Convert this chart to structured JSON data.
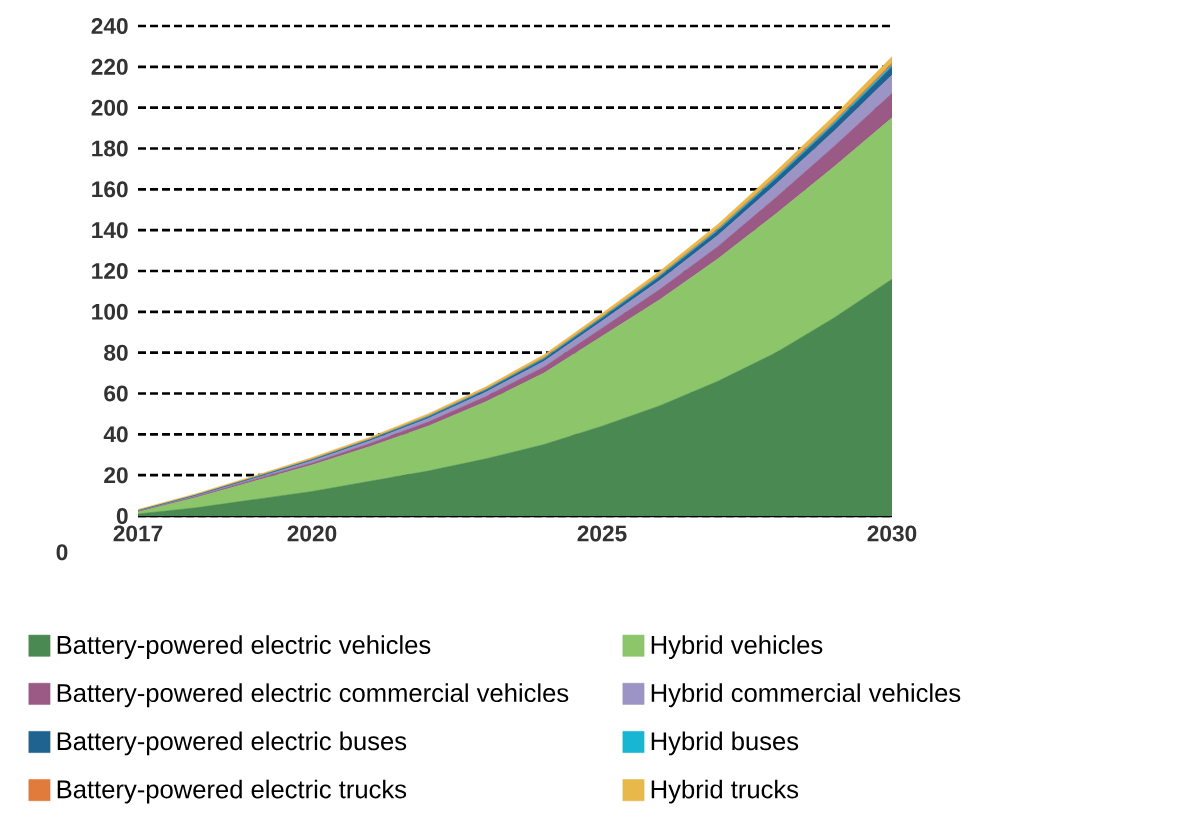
{
  "chart_data": {
    "type": "area",
    "stacked": true,
    "x": [
      2017,
      2018,
      2019,
      2020,
      2021,
      2022,
      2023,
      2024,
      2025,
      2026,
      2027,
      2028,
      2029,
      2030
    ],
    "xlim": [
      2017,
      2030
    ],
    "xticks": [
      2017,
      2020,
      2025,
      2030
    ],
    "ylim": [
      0,
      240
    ],
    "yticks": [
      0,
      20,
      40,
      60,
      80,
      100,
      120,
      140,
      160,
      180,
      200,
      220,
      240
    ],
    "grid": "y",
    "legend": "bottom",
    "annotations": [
      "0"
    ],
    "series": [
      {
        "name": "Battery-powered electric vehicles",
        "color": "#4a8a52",
        "values": [
          1,
          4,
          8,
          12,
          17,
          22,
          28,
          35,
          44,
          54,
          66,
          80,
          97,
          116
        ]
      },
      {
        "name": "Hybrid vehicles",
        "color": "#8cc56a",
        "values": [
          1,
          5,
          9,
          13,
          17,
          22,
          28,
          35,
          44,
          52,
          60,
          68,
          74,
          79
        ]
      },
      {
        "name": "Battery-powered electric commercial vehicles",
        "color": "#9b5a86",
        "values": [
          0.2,
          0.5,
          0.8,
          1,
          1.5,
          2,
          2.5,
          3,
          4,
          5,
          6,
          8,
          10,
          12
        ]
      },
      {
        "name": "Hybrid commercial vehicles",
        "color": "#9b94c4",
        "values": [
          0.2,
          0.4,
          0.6,
          1,
          1.3,
          1.7,
          2.2,
          2.8,
          3.5,
          4.5,
          5.5,
          6.5,
          7.5,
          9
        ]
      },
      {
        "name": "Battery-powered electric buses",
        "color": "#1f6391",
        "values": [
          0.1,
          0.2,
          0.3,
          0.4,
          0.5,
          0.7,
          0.9,
          1.1,
          1.4,
          1.8,
          2.2,
          2.7,
          3.3,
          4
        ]
      },
      {
        "name": "Hybrid buses",
        "color": "#19b6d4",
        "values": [
          0.1,
          0.1,
          0.1,
          0.2,
          0.2,
          0.3,
          0.3,
          0.4,
          0.4,
          0.5,
          0.6,
          0.7,
          0.8,
          1
        ]
      },
      {
        "name": "Battery-powered electric trucks",
        "color": "#e07b3c",
        "values": [
          0.1,
          0.1,
          0.1,
          0.2,
          0.2,
          0.3,
          0.3,
          0.4,
          0.4,
          0.5,
          0.6,
          0.7,
          0.8,
          1
        ]
      },
      {
        "name": "Hybrid trucks",
        "color": "#e8b84a",
        "values": [
          0.5,
          0.6,
          0.7,
          0.8,
          0.9,
          1,
          1.1,
          1.3,
          1.5,
          1.7,
          2,
          2.3,
          2.6,
          3
        ]
      }
    ]
  }
}
